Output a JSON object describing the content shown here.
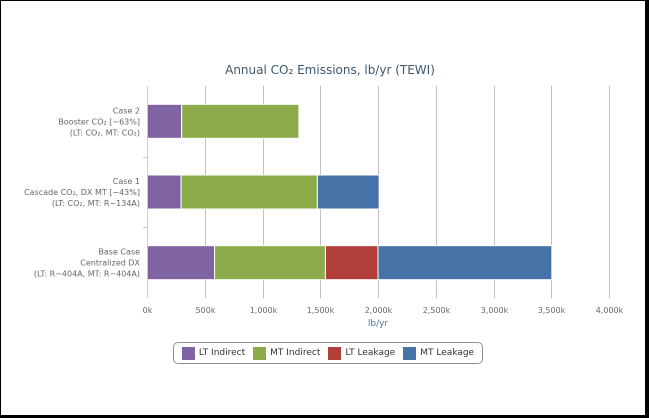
{
  "chart_data": {
    "type": "bar",
    "orientation": "horizontal",
    "stacked": true,
    "title": "Annual CO₂ Emissions, lb/yr (TEWI)",
    "xlabel": "lb/yr",
    "xlim": [
      0,
      4000000
    ],
    "tick_values": [
      0,
      500000,
      1000000,
      1500000,
      2000000,
      2500000,
      3000000,
      3500000,
      4000000
    ],
    "tick_labels": [
      "0k",
      "500k",
      "1,000k",
      "1,500k",
      "2,000k",
      "2,500k",
      "3,000k",
      "3,500k",
      "4,000k"
    ],
    "grid": true,
    "legend_position": "bottom-center",
    "categories": [
      [
        "Case 2",
        "Booster CO₂ [−63%]",
        "(LT: CO₂, MT: CO₂)"
      ],
      [
        "Case 1",
        "Cascade CO₂, DX MT [−43%]",
        "(LT: CO₂, MT: R−134A)"
      ],
      [
        "Base Case",
        "Centralized DX",
        "(LT: R−404A, MT: R−404A)"
      ]
    ],
    "series": [
      {
        "name": "LT Indirect",
        "color": "#8064a2",
        "values": [
          300000,
          295000,
          585000
        ]
      },
      {
        "name": "MT Indirect",
        "color": "#8cac4c",
        "values": [
          1015000,
          1180000,
          960000
        ]
      },
      {
        "name": "LT Leakage",
        "color": "#b23e3a",
        "values": [
          0,
          0,
          455000
        ]
      },
      {
        "name": "MT Leakage",
        "color": "#4572a7",
        "values": [
          0,
          535000,
          1505000
        ]
      }
    ]
  }
}
